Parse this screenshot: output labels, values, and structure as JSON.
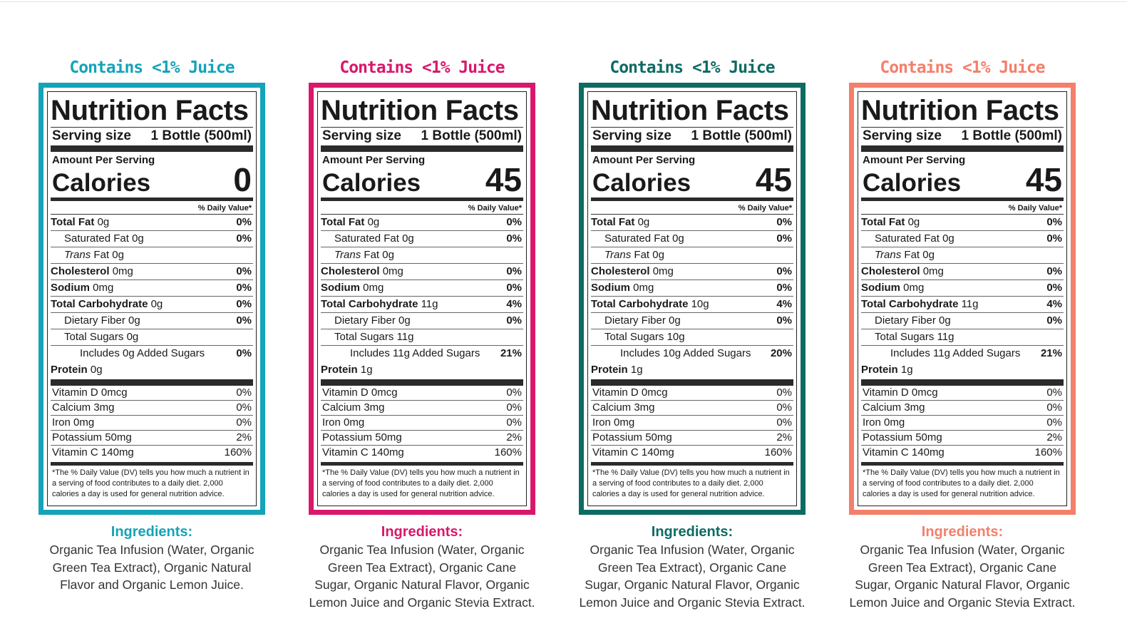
{
  "colors": {
    "teal": "#14a3b8",
    "magenta": "#d9176b",
    "dark_teal": "#0d6b63",
    "coral": "#f47f6a"
  },
  "label_text": {
    "title": "Nutrition Facts",
    "serving_label": "Serving size",
    "serving_value": "1 Bottle (500ml)",
    "amount_per_serving": "Amount Per Serving",
    "calories_label": "Calories",
    "daily_value_header": "% Daily Value*",
    "ingredients_title": "Ingredients:",
    "footnote": "*The % Daily Value (DV) tells you how much a nutrient in a serving of food contributes to a daily diet. 2,000 calories a day is used for general nutrition advice."
  },
  "labels": [
    {
      "juice": "Contains <1% Juice",
      "color": "#14a3b8",
      "calories": "0",
      "nutrients": [
        {
          "name": "Total Fat",
          "amount": "0g",
          "dv": "0%",
          "style": "bold"
        },
        {
          "name": "Saturated Fat",
          "amount": "0g",
          "dv": "0%",
          "style": "indent1"
        },
        {
          "name": "Trans",
          "amount": "Fat 0g",
          "dv": "",
          "style": "indent1 trans"
        },
        {
          "name": "Cholesterol",
          "amount": "0mg",
          "dv": "0%",
          "style": "bold"
        },
        {
          "name": "Sodium",
          "amount": "0mg",
          "dv": "0%",
          "style": "bold"
        },
        {
          "name": "Total Carbohydrate",
          "amount": "0g",
          "dv": "0%",
          "style": "bold"
        },
        {
          "name": "Dietary Fiber",
          "amount": "0g",
          "dv": "0%",
          "style": "indent1"
        },
        {
          "name": "Total Sugars",
          "amount": "0g",
          "dv": "",
          "style": "indent1"
        },
        {
          "name": "Includes 0g Added Sugars",
          "amount": "",
          "dv": "0%",
          "style": "indent2"
        },
        {
          "name": "Protein",
          "amount": "0g",
          "dv": "",
          "style": "bold protein"
        }
      ],
      "vitamins": [
        {
          "name": "Vitamin D 0mcg",
          "dv": "0%"
        },
        {
          "name": "Calcium 3mg",
          "dv": "0%"
        },
        {
          "name": "Iron 0mg",
          "dv": "0%"
        },
        {
          "name": "Potassium 50mg",
          "dv": "2%"
        },
        {
          "name": "Vitamin C 140mg",
          "dv": "160%"
        }
      ],
      "ingredients": "Organic Tea Infusion (Water, Organic Green Tea Extract), Organic Natural Flavor and Organic Lemon Juice."
    },
    {
      "juice": "Contains <1% Juice",
      "color": "#d9176b",
      "calories": "45",
      "nutrients": [
        {
          "name": "Total Fat",
          "amount": "0g",
          "dv": "0%",
          "style": "bold"
        },
        {
          "name": "Saturated Fat",
          "amount": "0g",
          "dv": "0%",
          "style": "indent1"
        },
        {
          "name": "Trans",
          "amount": "Fat 0g",
          "dv": "",
          "style": "indent1 trans"
        },
        {
          "name": "Cholesterol",
          "amount": "0mg",
          "dv": "0%",
          "style": "bold"
        },
        {
          "name": "Sodium",
          "amount": "0mg",
          "dv": "0%",
          "style": "bold"
        },
        {
          "name": "Total Carbohydrate",
          "amount": "11g",
          "dv": "4%",
          "style": "bold"
        },
        {
          "name": "Dietary Fiber",
          "amount": "0g",
          "dv": "0%",
          "style": "indent1"
        },
        {
          "name": "Total Sugars",
          "amount": "11g",
          "dv": "",
          "style": "indent1"
        },
        {
          "name": "Includes 11g Added Sugars",
          "amount": "",
          "dv": "21%",
          "style": "indent2"
        },
        {
          "name": "Protein",
          "amount": "1g",
          "dv": "",
          "style": "bold protein"
        }
      ],
      "vitamins": [
        {
          "name": "Vitamin D 0mcg",
          "dv": "0%"
        },
        {
          "name": "Calcium 3mg",
          "dv": "0%"
        },
        {
          "name": "Iron 0mg",
          "dv": "0%"
        },
        {
          "name": "Potassium 50mg",
          "dv": "2%"
        },
        {
          "name": "Vitamin C 140mg",
          "dv": "160%"
        }
      ],
      "ingredients": "Organic Tea Infusion (Water, Organic Green Tea Extract), Organic Cane Sugar, Organic Natural Flavor, Organic Lemon Juice and Organic Stevia Extract."
    },
    {
      "juice": "Contains <1% Juice",
      "color": "#0d6b63",
      "calories": "45",
      "nutrients": [
        {
          "name": "Total Fat",
          "amount": "0g",
          "dv": "0%",
          "style": "bold"
        },
        {
          "name": "Saturated Fat",
          "amount": "0g",
          "dv": "0%",
          "style": "indent1"
        },
        {
          "name": "Trans",
          "amount": "Fat 0g",
          "dv": "",
          "style": "indent1 trans"
        },
        {
          "name": "Cholesterol",
          "amount": "0mg",
          "dv": "0%",
          "style": "bold"
        },
        {
          "name": "Sodium",
          "amount": "0mg",
          "dv": "0%",
          "style": "bold"
        },
        {
          "name": "Total Carbohydrate",
          "amount": "10g",
          "dv": "4%",
          "style": "bold"
        },
        {
          "name": "Dietary Fiber",
          "amount": "0g",
          "dv": "0%",
          "style": "indent1"
        },
        {
          "name": "Total Sugars",
          "amount": "10g",
          "dv": "",
          "style": "indent1"
        },
        {
          "name": "Includes 10g Added Sugars",
          "amount": "",
          "dv": "20%",
          "style": "indent2"
        },
        {
          "name": "Protein",
          "amount": "1g",
          "dv": "",
          "style": "bold protein"
        }
      ],
      "vitamins": [
        {
          "name": "Vitamin D 0mcg",
          "dv": "0%"
        },
        {
          "name": "Calcium 3mg",
          "dv": "0%"
        },
        {
          "name": "Iron 0mg",
          "dv": "0%"
        },
        {
          "name": "Potassium 50mg",
          "dv": "2%"
        },
        {
          "name": "Vitamin C 140mg",
          "dv": "160%"
        }
      ],
      "ingredients": "Organic Tea Infusion (Water, Organic Green Tea Extract), Organic Cane Sugar, Organic Natural Flavor, Organic Lemon Juice and Organic Stevia Extract."
    },
    {
      "juice": "Contains <1% Juice",
      "color": "#f47f6a",
      "calories": "45",
      "nutrients": [
        {
          "name": "Total Fat",
          "amount": "0g",
          "dv": "0%",
          "style": "bold"
        },
        {
          "name": "Saturated Fat",
          "amount": "0g",
          "dv": "0%",
          "style": "indent1"
        },
        {
          "name": "Trans",
          "amount": "Fat 0g",
          "dv": "",
          "style": "indent1 trans"
        },
        {
          "name": "Cholesterol",
          "amount": "0mg",
          "dv": "0%",
          "style": "bold"
        },
        {
          "name": "Sodium",
          "amount": "0mg",
          "dv": "0%",
          "style": "bold"
        },
        {
          "name": "Total Carbohydrate",
          "amount": "11g",
          "dv": "4%",
          "style": "bold"
        },
        {
          "name": "Dietary Fiber",
          "amount": "0g",
          "dv": "0%",
          "style": "indent1"
        },
        {
          "name": "Total Sugars",
          "amount": "11g",
          "dv": "",
          "style": "indent1"
        },
        {
          "name": "Includes 11g Added Sugars",
          "amount": "",
          "dv": "21%",
          "style": "indent2"
        },
        {
          "name": "Protein",
          "amount": "1g",
          "dv": "",
          "style": "bold protein"
        }
      ],
      "vitamins": [
        {
          "name": "Vitamin D 0mcg",
          "dv": "0%"
        },
        {
          "name": "Calcium 3mg",
          "dv": "0%"
        },
        {
          "name": "Iron 0mg",
          "dv": "0%"
        },
        {
          "name": "Potassium 50mg",
          "dv": "2%"
        },
        {
          "name": "Vitamin C 140mg",
          "dv": "160%"
        }
      ],
      "ingredients": "Organic Tea Infusion (Water, Organic Green Tea Extract), Organic Cane Sugar, Organic Natural Flavor, Organic Lemon Juice and Organic Stevia Extract."
    }
  ]
}
